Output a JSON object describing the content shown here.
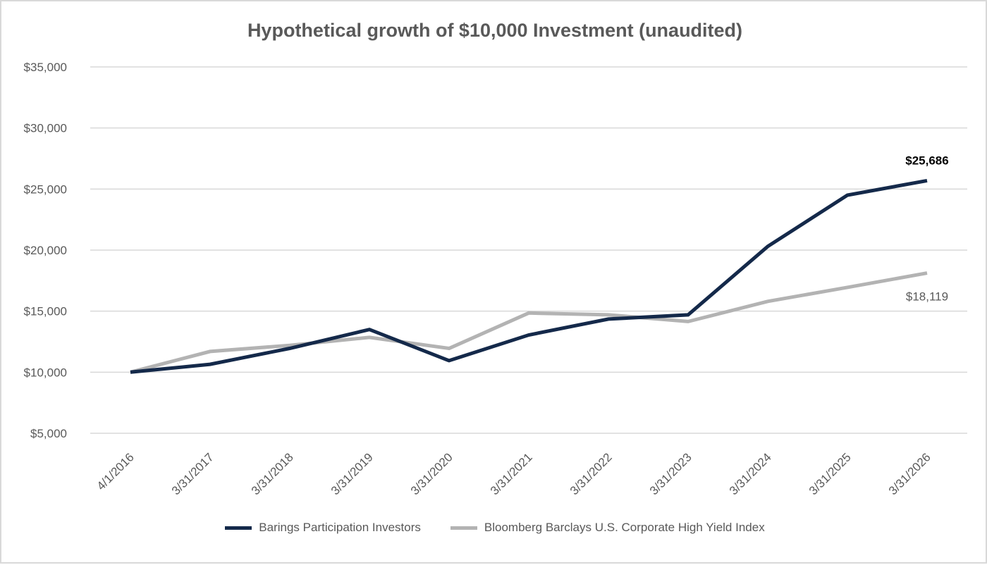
{
  "chart_data": {
    "type": "line",
    "title": "Hypothetical growth of $10,000 Investment (unaudited)",
    "xlabel": "",
    "ylabel": "",
    "x": [
      "4/1/2016",
      "3/31/2017",
      "3/31/2018",
      "3/31/2019",
      "3/31/2020",
      "3/31/2021",
      "3/31/2022",
      "3/31/2023",
      "3/31/2024",
      "3/31/2025",
      "3/31/2026"
    ],
    "ylim": [
      5000,
      35000
    ],
    "yticks": [
      5000,
      10000,
      15000,
      20000,
      25000,
      30000,
      35000
    ],
    "ytick_labels": [
      "$5,000",
      "$10,000",
      "$15,000",
      "$20,000",
      "$25,000",
      "$30,000",
      "$35,000"
    ],
    "grid": true,
    "legend_position": "bottom",
    "series": [
      {
        "name": "Barings Participation Investors",
        "color": "#14294a",
        "values": [
          10000,
          10650,
          11950,
          13500,
          10950,
          13050,
          14350,
          14700,
          20300,
          24500,
          25686
        ],
        "end_label": "$25,686",
        "end_label_bold": true,
        "end_label_color": "#000000"
      },
      {
        "name": "Bloomberg Barclays U.S. Corporate High Yield Index",
        "color": "#b3b3b3",
        "values": [
          10000,
          11700,
          12200,
          12850,
          11950,
          14850,
          14700,
          14150,
          15800,
          16950,
          18119
        ],
        "end_label": "$18,119",
        "end_label_bold": false,
        "end_label_color": "#595959"
      }
    ]
  }
}
